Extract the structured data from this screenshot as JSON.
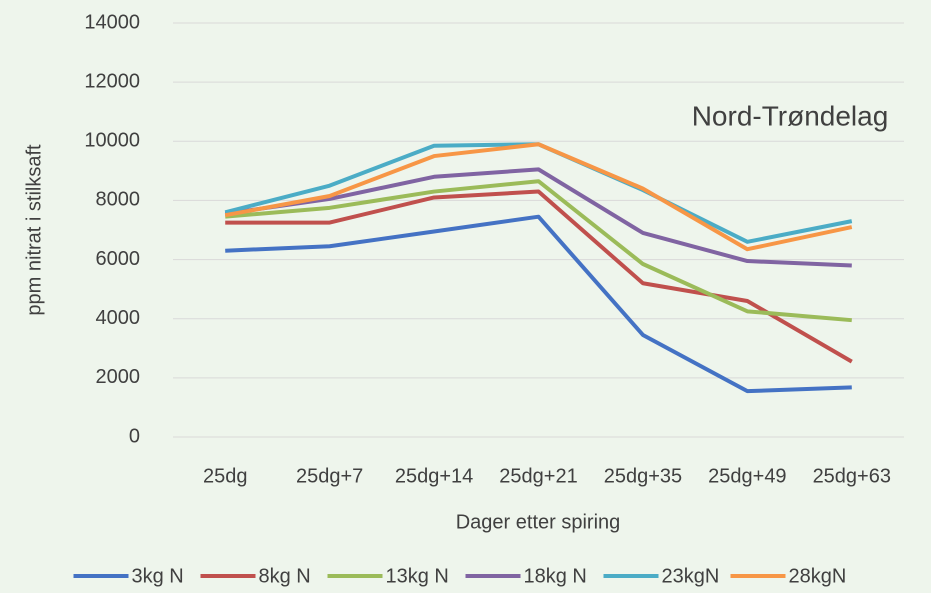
{
  "chart_data": {
    "type": "line",
    "annotation": "Nord-Trøndelag",
    "x_label": "Dager etter spiring",
    "y_label": "ppm nitrat i stilksaft",
    "categories": [
      "25dg",
      "25dg+7",
      "25dg+14",
      "25dg+21",
      "25dg+35",
      "25dg+49",
      "25dg+63"
    ],
    "series": [
      {
        "name": "3kg N",
        "color": "#4472c4",
        "values": [
          6300,
          6450,
          6950,
          7450,
          3450,
          1550,
          1680
        ]
      },
      {
        "name": "8kg N",
        "color": "#c0504d",
        "values": [
          7250,
          7250,
          8100,
          8300,
          5200,
          4600,
          2550
        ]
      },
      {
        "name": "13kg N",
        "color": "#9bbb59",
        "values": [
          7450,
          7750,
          8300,
          8650,
          5850,
          4250,
          3950
        ]
      },
      {
        "name": "18kg N",
        "color": "#8064a2",
        "values": [
          7550,
          8050,
          8800,
          9050,
          6900,
          5950,
          5800
        ]
      },
      {
        "name": "23kgN",
        "color": "#4bacc6",
        "values": [
          7600,
          8500,
          9850,
          9900,
          8350,
          6600,
          7300
        ]
      },
      {
        "name": "28kgN",
        "color": "#f79646",
        "values": [
          7500,
          8150,
          9500,
          9900,
          8400,
          6350,
          7100
        ]
      }
    ],
    "ylim": [
      0,
      14000
    ],
    "yticks": [
      0,
      2000,
      4000,
      6000,
      8000,
      10000,
      12000,
      14000
    ],
    "grid": true,
    "legend": "bottom"
  }
}
